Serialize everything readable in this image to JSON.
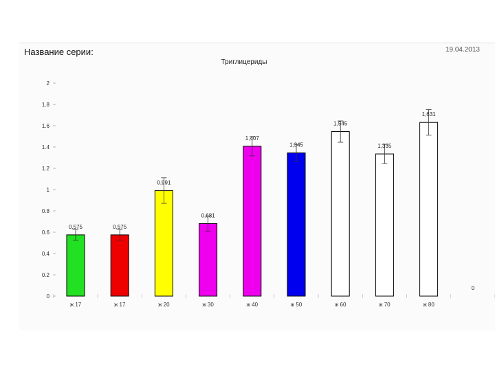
{
  "header": {
    "series_label": "Название серии:",
    "date": "19.04.2013"
  },
  "chart_data": {
    "type": "bar",
    "title": "Триглицериды",
    "xlabel": "",
    "ylabel": "",
    "ylim": [
      0,
      2
    ],
    "yticks": [
      0,
      0.2,
      0.4,
      0.6,
      0.8,
      1,
      1.2,
      1.4,
      1.6,
      1.8,
      2
    ],
    "ytick_labels": [
      "0",
      "0.2",
      "0.4",
      "0.6",
      "0.8",
      "1",
      "1.2",
      "1.4",
      "1.6",
      "1.8",
      "2"
    ],
    "grid": false,
    "categories": [
      "ж 17",
      "ж 17",
      "ж 20",
      "ж 30",
      "ж 40",
      "ж 50",
      "ж 60",
      "ж 70",
      "ж 80",
      ""
    ],
    "values": [
      0.575,
      0.575,
      0.991,
      0.681,
      1.407,
      1.345,
      1.545,
      1.335,
      1.631,
      0
    ],
    "value_labels": [
      "0,575",
      "0,575",
      "0,991",
      "0,681",
      "1,407",
      "1,345",
      "1,545",
      "1,335",
      "1,631",
      "0"
    ],
    "error": [
      0.05,
      0.05,
      0.12,
      0.07,
      0.09,
      0.08,
      0.1,
      0.09,
      0.12,
      0
    ],
    "colors": [
      "#22e022",
      "#ee0000",
      "#ffff00",
      "#ee00ee",
      "#ee00ee",
      "#0000ee",
      "#ffffff",
      "#ffffff",
      "#ffffff",
      "#ffffff"
    ]
  }
}
